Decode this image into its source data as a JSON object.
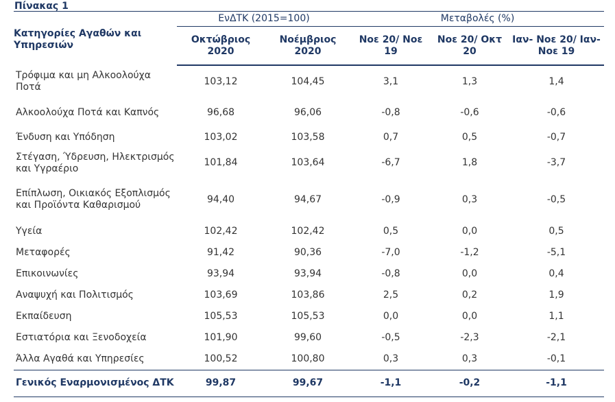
{
  "caption": "Πίνακας 1",
  "header": {
    "category_label": "Κατηγορίες Αγαθών και Υπηρεσιών",
    "index_group": "ΕνΔΤΚ (2015=100)",
    "changes_group": "Μεταβολές (%)",
    "columns": [
      "Οκτώβριος 2020",
      "Νοέμβριος 2020",
      "Νοε 20/ Νοε 19",
      "Νοε 20/ Οκτ 20",
      "Ιαν- Νοε 20/ Ιαν- Νοε 19"
    ]
  },
  "rows": [
    {
      "category": "Τρόφιμα και μη Αλκοολούχα Ποτά",
      "oct": "103,12",
      "nov": "104,45",
      "yoy": "3,1",
      "mom": "1,3",
      "ytd": "1,4"
    },
    {
      "category": "Αλκοολούχα Ποτά και Καπνός",
      "oct": "96,68",
      "nov": "96,06",
      "yoy": "-0,8",
      "mom": "-0,6",
      "ytd": "-0,6"
    },
    {
      "category": "Ένδυση και Υπόδηση",
      "oct": "103,02",
      "nov": "103,58",
      "yoy": "0,7",
      "mom": "0,5",
      "ytd": "-0,7"
    },
    {
      "category": "Στέγαση, Ύδρευση, Ηλεκτρισμός και Υγραέριο",
      "oct": "101,84",
      "nov": "103,64",
      "yoy": "-6,7",
      "mom": "1,8",
      "ytd": "-3,7"
    },
    {
      "category": "Επίπλωση, Οικιακός Εξοπλισμός και Προϊόντα Καθαρισμού",
      "oct": "94,40",
      "nov": "94,67",
      "yoy": "-0,9",
      "mom": "0,3",
      "ytd": "-0,5"
    },
    {
      "category": "Υγεία",
      "oct": "102,42",
      "nov": "102,42",
      "yoy": "0,5",
      "mom": "0,0",
      "ytd": "0,5"
    },
    {
      "category": "Μεταφορές",
      "oct": "91,42",
      "nov": "90,36",
      "yoy": "-7,0",
      "mom": "-1,2",
      "ytd": "-5,1"
    },
    {
      "category": "Επικοινωνίες",
      "oct": "93,94",
      "nov": "93,94",
      "yoy": "-0,8",
      "mom": "0,0",
      "ytd": "0,4"
    },
    {
      "category": "Αναψυχή και Πολιτισμός",
      "oct": "103,69",
      "nov": "103,86",
      "yoy": "2,5",
      "mom": "0,2",
      "ytd": "1,9"
    },
    {
      "category": "Εκπαίδευση",
      "oct": "105,53",
      "nov": "105,53",
      "yoy": "0,0",
      "mom": "0,0",
      "ytd": "1,1"
    },
    {
      "category": "Εστιατόρια και Ξενοδοχεία",
      "oct": "101,90",
      "nov": "99,60",
      "yoy": "-0,5",
      "mom": "-2,3",
      "ytd": "-2,1"
    },
    {
      "category": "Άλλα Αγαθά και Υπηρεσίες",
      "oct": "100,52",
      "nov": "100,80",
      "yoy": "0,3",
      "mom": "0,3",
      "ytd": "-0,1"
    }
  ],
  "total": {
    "category": "Γενικός Εναρμονισμένος ΔΤΚ",
    "oct": "99,87",
    "nov": "99,67",
    "yoy": "-1,1",
    "mom": "-0,2",
    "ytd": "-1,1"
  },
  "colors": {
    "header_text": "#1f3864",
    "body_text": "#333333",
    "rule": "#1f3864"
  }
}
